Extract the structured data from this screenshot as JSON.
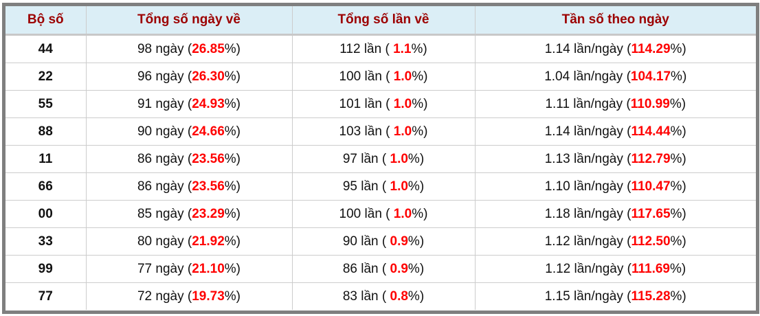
{
  "headers": [
    "Bộ số",
    "Tổng số ngày về",
    "Tổng số lần về",
    "Tần số theo ngày"
  ],
  "colors": {
    "header_bg": "#dbeef6",
    "header_text": "#9c0000",
    "highlight": "#ff0000",
    "border": "#7f7f7f"
  },
  "rows": [
    {
      "bo_so": "44",
      "ngay": "98",
      "ngay_pct": "26.85",
      "lan": "112",
      "lan_pct": "1.1",
      "tan_so": "1.14",
      "tan_so_pct": "114.29"
    },
    {
      "bo_so": "22",
      "ngay": "96",
      "ngay_pct": "26.30",
      "lan": "100",
      "lan_pct": "1.0",
      "tan_so": "1.04",
      "tan_so_pct": "104.17"
    },
    {
      "bo_so": "55",
      "ngay": "91",
      "ngay_pct": "24.93",
      "lan": "101",
      "lan_pct": "1.0",
      "tan_so": "1.11",
      "tan_so_pct": "110.99"
    },
    {
      "bo_so": "88",
      "ngay": "90",
      "ngay_pct": "24.66",
      "lan": "103",
      "lan_pct": "1.0",
      "tan_so": "1.14",
      "tan_so_pct": "114.44"
    },
    {
      "bo_so": "11",
      "ngay": "86",
      "ngay_pct": "23.56",
      "lan": "97",
      "lan_pct": "1.0",
      "tan_so": "1.13",
      "tan_so_pct": "112.79"
    },
    {
      "bo_so": "66",
      "ngay": "86",
      "ngay_pct": "23.56",
      "lan": "95",
      "lan_pct": "1.0",
      "tan_so": "1.10",
      "tan_so_pct": "110.47"
    },
    {
      "bo_so": "00",
      "ngay": "85",
      "ngay_pct": "23.29",
      "lan": "100",
      "lan_pct": "1.0",
      "tan_so": "1.18",
      "tan_so_pct": "117.65"
    },
    {
      "bo_so": "33",
      "ngay": "80",
      "ngay_pct": "21.92",
      "lan": "90",
      "lan_pct": "0.9",
      "tan_so": "1.12",
      "tan_so_pct": "112.50"
    },
    {
      "bo_so": "99",
      "ngay": "77",
      "ngay_pct": "21.10",
      "lan": "86",
      "lan_pct": "0.9",
      "tan_so": "1.12",
      "tan_so_pct": "111.69"
    },
    {
      "bo_so": "77",
      "ngay": "72",
      "ngay_pct": "19.73",
      "lan": "83",
      "lan_pct": "0.8",
      "tan_so": "1.15",
      "tan_so_pct": "115.28"
    }
  ]
}
